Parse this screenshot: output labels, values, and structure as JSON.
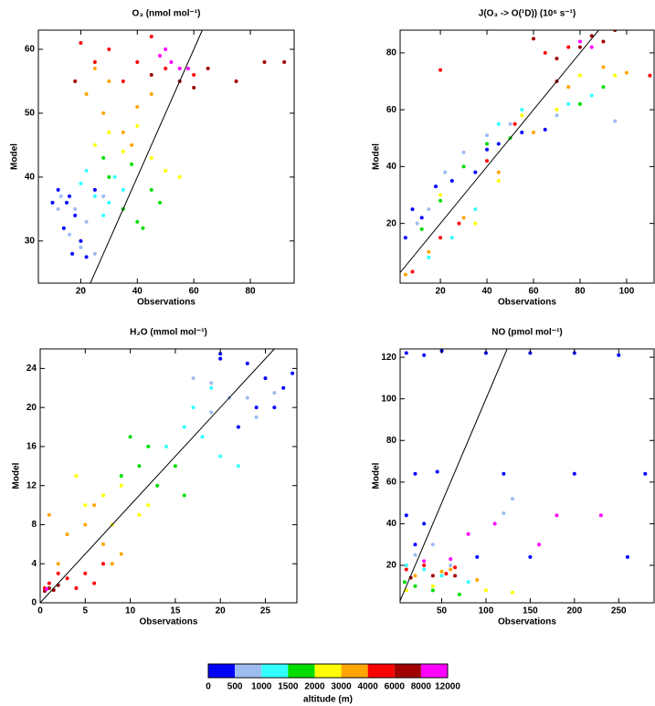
{
  "chart_data": [
    {
      "type": "scatter",
      "title": "O₃ (nmol mol⁻¹)",
      "x_label": "Observations",
      "y_label": "Model",
      "xlim": [
        5,
        95.5
      ],
      "ylim": [
        23.4,
        63
      ],
      "xticks": [
        20,
        40,
        60,
        80
      ],
      "yticks": [
        30,
        40,
        50,
        60
      ],
      "identity_line": true,
      "series": [
        {
          "color": "#0000ff",
          "x": [
            12,
            15,
            18,
            14,
            20,
            17,
            22,
            25,
            10,
            16
          ],
          "y": [
            38,
            36,
            34,
            32,
            30,
            28,
            27.5,
            38,
            36,
            37
          ]
        },
        {
          "color": "#9dbcf0",
          "x": [
            13,
            18,
            22,
            20,
            16,
            25,
            28,
            12
          ],
          "y": [
            37,
            35,
            33,
            29,
            31,
            28,
            37,
            35
          ]
        },
        {
          "color": "#33ffff",
          "x": [
            20,
            25,
            30,
            28,
            35,
            22,
            32
          ],
          "y": [
            39,
            37,
            36,
            34,
            38,
            41,
            40
          ]
        },
        {
          "color": "#00dd00",
          "x": [
            30,
            35,
            40,
            38,
            45,
            42,
            28,
            48
          ],
          "y": [
            40,
            35,
            33,
            42,
            38,
            32,
            43,
            36
          ]
        },
        {
          "color": "#ffff00",
          "x": [
            25,
            35,
            45,
            50,
            40,
            55,
            30
          ],
          "y": [
            45,
            44,
            43,
            41,
            48,
            40,
            47
          ]
        },
        {
          "color": "#ffa500",
          "x": [
            22,
            28,
            35,
            30,
            40,
            45,
            25,
            38
          ],
          "y": [
            53,
            50,
            47,
            55,
            51,
            53,
            57,
            45
          ]
        },
        {
          "color": "#ff0000",
          "x": [
            20,
            30,
            40,
            50,
            25,
            45,
            60,
            35
          ],
          "y": [
            61,
            60,
            58,
            57,
            58,
            62,
            56,
            55
          ]
        },
        {
          "color": "#a00000",
          "x": [
            18,
            45,
            55,
            65,
            75,
            85,
            92,
            60
          ],
          "y": [
            55,
            56,
            55,
            57,
            55,
            58,
            58,
            54
          ]
        },
        {
          "color": "#ff00ff",
          "x": [
            50,
            52,
            55,
            48,
            58
          ],
          "y": [
            60,
            58,
            57,
            59,
            57
          ]
        }
      ]
    },
    {
      "type": "scatter",
      "title": "J(O₃ -> O(¹D)) (10⁶ s⁻¹)",
      "x_label": "Observations",
      "y_label": "Model",
      "xlim": [
        2.7,
        111.8
      ],
      "ylim": [
        -1,
        88
      ],
      "xticks": [
        20,
        40,
        60,
        80,
        100
      ],
      "yticks": [
        20,
        40,
        60,
        80
      ],
      "identity_line": true,
      "series": [
        {
          "color": "#0000ff",
          "x": [
            5,
            8,
            12,
            18,
            25,
            35,
            40,
            45,
            55,
            65
          ],
          "y": [
            15,
            25,
            22,
            33,
            35,
            38,
            46,
            48,
            52,
            53
          ]
        },
        {
          "color": "#9dbcf0",
          "x": [
            10,
            15,
            22,
            30,
            40,
            50,
            70,
            95
          ],
          "y": [
            20,
            25,
            38,
            45,
            51,
            55,
            58,
            56
          ]
        },
        {
          "color": "#33ffff",
          "x": [
            15,
            25,
            35,
            45,
            55,
            75,
            85
          ],
          "y": [
            8,
            15,
            25,
            55,
            60,
            62,
            65
          ]
        },
        {
          "color": "#00dd00",
          "x": [
            12,
            20,
            30,
            40,
            50,
            80,
            90
          ],
          "y": [
            18,
            28,
            40,
            48,
            50,
            62,
            68
          ]
        },
        {
          "color": "#ffff00",
          "x": [
            20,
            35,
            45,
            55,
            70,
            80,
            95
          ],
          "y": [
            30,
            20,
            35,
            58,
            60,
            72,
            72
          ]
        },
        {
          "color": "#ffa500",
          "x": [
            5,
            15,
            30,
            45,
            60,
            75,
            90,
            100
          ],
          "y": [
            2,
            10,
            22,
            38,
            52,
            68,
            75,
            73
          ]
        },
        {
          "color": "#ff0000",
          "x": [
            8,
            20,
            28,
            40,
            52,
            65,
            75,
            20,
            110
          ],
          "y": [
            3,
            15,
            20,
            42,
            55,
            80,
            82,
            74,
            72
          ]
        },
        {
          "color": "#a00000",
          "x": [
            60,
            70,
            80,
            85,
            90,
            95,
            70
          ],
          "y": [
            85,
            78,
            82,
            86,
            84,
            88,
            70
          ]
        },
        {
          "color": "#ff00ff",
          "x": [
            80,
            85
          ],
          "y": [
            84,
            82
          ]
        }
      ]
    },
    {
      "type": "scatter",
      "title": "H₂O (mmol mol⁻¹)",
      "x_label": "Observations",
      "y_label": "Model",
      "xlim": [
        0,
        28.5
      ],
      "ylim": [
        0,
        26
      ],
      "xticks": [
        0,
        5,
        10,
        15,
        20,
        25
      ],
      "yticks": [
        0,
        4,
        8,
        12,
        16,
        20,
        24
      ],
      "identity_line": true,
      "series": [
        {
          "color": "#0000ff",
          "x": [
            20,
            23,
            25,
            27,
            24,
            26,
            22,
            20,
            28
          ],
          "y": [
            25,
            24.5,
            23,
            22,
            20,
            20,
            18,
            25.5,
            23.5
          ]
        },
        {
          "color": "#9dbcf0",
          "x": [
            19,
            21,
            23,
            24,
            19,
            26,
            17
          ],
          "y": [
            22.5,
            21,
            21,
            19,
            19.5,
            21.5,
            23
          ]
        },
        {
          "color": "#33ffff",
          "x": [
            14,
            16,
            18,
            20,
            22,
            17,
            19
          ],
          "y": [
            16,
            18,
            17,
            15,
            14,
            20,
            22
          ]
        },
        {
          "color": "#00dd00",
          "x": [
            9,
            11,
            13,
            15,
            12,
            16,
            10
          ],
          "y": [
            13,
            14,
            12,
            14,
            16,
            11,
            17
          ]
        },
        {
          "color": "#ffff00",
          "x": [
            5,
            7,
            9,
            8,
            11,
            4,
            12
          ],
          "y": [
            10,
            11,
            12,
            8,
            9,
            13,
            10
          ]
        },
        {
          "color": "#ffa500",
          "x": [
            2,
            3,
            5,
            7,
            9,
            6,
            1,
            8
          ],
          "y": [
            4,
            7,
            8,
            6,
            5,
            10,
            9,
            4
          ]
        },
        {
          "color": "#ff0000",
          "x": [
            0.5,
            1,
            2,
            3,
            5,
            7,
            4,
            6
          ],
          "y": [
            1.5,
            2,
            3,
            2.5,
            3,
            4,
            1.5,
            2
          ]
        },
        {
          "color": "#a00000",
          "x": [
            0.5,
            1,
            2,
            1.5
          ],
          "y": [
            1.2,
            1.5,
            1.8,
            1.3
          ]
        },
        {
          "color": "#ff00ff",
          "x": [
            0.7
          ],
          "y": [
            1.4
          ]
        }
      ]
    },
    {
      "type": "scatter",
      "title": "NO (pmol mol⁻¹)",
      "x_label": "Observations",
      "y_label": "Model",
      "xlim": [
        3,
        290
      ],
      "ylim": [
        2,
        124
      ],
      "xticks": [
        50,
        100,
        150,
        200,
        250
      ],
      "yticks": [
        20,
        40,
        60,
        80,
        100,
        120
      ],
      "identity_line": true,
      "series": [
        {
          "color": "#0000ff",
          "x": [
            10,
            30,
            50,
            100,
            150,
            200,
            250,
            20,
            45,
            120,
            200,
            280,
            10,
            30,
            20,
            90,
            150,
            260
          ],
          "y": [
            122,
            121,
            123,
            122,
            122,
            122,
            121,
            64,
            65,
            64,
            64,
            64,
            44,
            40,
            30,
            24,
            24,
            24
          ]
        },
        {
          "color": "#9dbcf0",
          "x": [
            20,
            40,
            120,
            130,
            60
          ],
          "y": [
            25,
            30,
            45,
            52,
            20
          ]
        },
        {
          "color": "#33ffff",
          "x": [
            10,
            30,
            50,
            80
          ],
          "y": [
            20,
            18,
            15,
            12
          ]
        },
        {
          "color": "#00dd00",
          "x": [
            8,
            20,
            40,
            70
          ],
          "y": [
            12,
            10,
            8,
            6
          ]
        },
        {
          "color": "#ffff00",
          "x": [
            10,
            40,
            100,
            130
          ],
          "y": [
            8,
            10,
            8,
            7
          ]
        },
        {
          "color": "#ffa500",
          "x": [
            20,
            50,
            90,
            60
          ],
          "y": [
            15,
            17,
            13,
            18
          ]
        },
        {
          "color": "#ff0000",
          "x": [
            10,
            30,
            55,
            65
          ],
          "y": [
            18,
            20,
            16,
            19
          ]
        },
        {
          "color": "#a00000",
          "x": [
            15,
            40,
            65
          ],
          "y": [
            14,
            15,
            15
          ]
        },
        {
          "color": "#ff00ff",
          "x": [
            30,
            60,
            80,
            110,
            180,
            230,
            160
          ],
          "y": [
            22,
            23,
            35,
            40,
            44,
            44,
            30
          ]
        }
      ]
    }
  ],
  "colorbar": {
    "label": "altitude (m)",
    "ticks": [
      0,
      500,
      1000,
      1500,
      2000,
      3000,
      4000,
      6000,
      8000,
      12000
    ],
    "colors": [
      "#0000ff",
      "#9dbcf0",
      "#33ffff",
      "#00dd00",
      "#ffff00",
      "#ffa500",
      "#ff0000",
      "#a00000",
      "#ff00ff"
    ]
  }
}
